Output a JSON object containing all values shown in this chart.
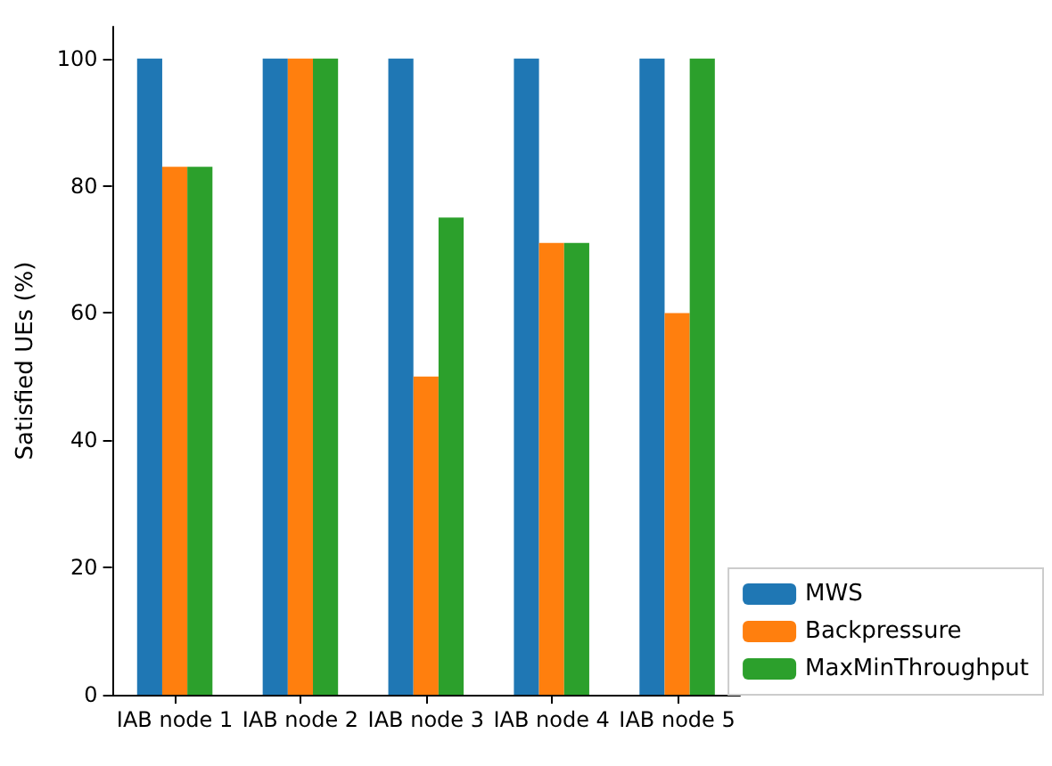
{
  "chart_data": {
    "type": "bar",
    "ylabel": "Satisfied UEs (%)",
    "categories": [
      "IAB node 1",
      "IAB node 2",
      "IAB node 3",
      "IAB node 4",
      "IAB node 5"
    ],
    "series": [
      {
        "name": "MWS",
        "color": "#1f77b4",
        "values": [
          100,
          100,
          100,
          100,
          100
        ]
      },
      {
        "name": "Backpressure",
        "color": "#ff7f0e",
        "values": [
          83,
          100,
          50,
          71,
          60
        ]
      },
      {
        "name": "MaxMinThroughput",
        "color": "#2ca02c",
        "values": [
          83,
          100,
          75,
          71,
          100
        ]
      }
    ],
    "ylim": [
      0,
      105
    ],
    "yticks": [
      0,
      20,
      40,
      60,
      80,
      100
    ],
    "grid": false,
    "legend": "bottom right"
  }
}
